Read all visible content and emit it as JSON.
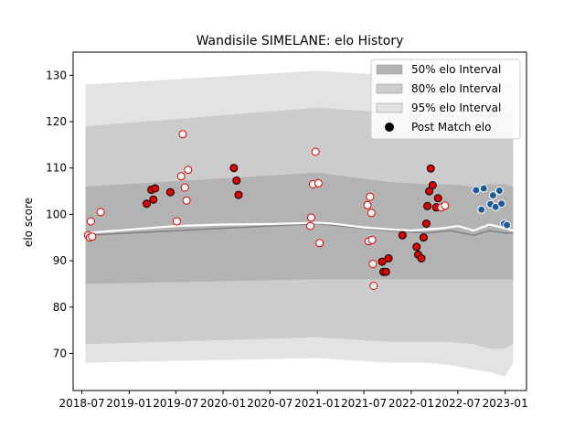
{
  "chart_data": {
    "type": "scatter",
    "title": "Wandisile SIMELANE: elo History",
    "xlabel": "",
    "ylabel": "elo score",
    "xlim": [
      "2018-05-28",
      "2023-03-25"
    ],
    "ylim": [
      62,
      135
    ],
    "xticks": [
      "2018-07-01",
      "2019-01-01",
      "2019-07-01",
      "2020-01-01",
      "2020-07-01",
      "2021-01-01",
      "2021-07-01",
      "2022-01-01",
      "2022-07-01",
      "2023-01-01"
    ],
    "xtick_labels": [
      "2018-07",
      "2019-01",
      "2019-07",
      "2020-01",
      "2020-07",
      "2021-01",
      "2021-07",
      "2022-01",
      "2022-07",
      "2023-01"
    ],
    "yticks": [
      70,
      80,
      90,
      100,
      110,
      120,
      130
    ],
    "grid": false,
    "legend_position": "top-right",
    "legend": [
      {
        "label": "50% elo Interval",
        "kind": "patch",
        "color": "#b3b3b3"
      },
      {
        "label": "80% elo Interval",
        "kind": "patch",
        "color": "#cccccc"
      },
      {
        "label": "95% elo Interval",
        "kind": "patch",
        "color": "#e3e3e3"
      },
      {
        "label": "Post Match elo",
        "kind": "marker",
        "color": "#000000"
      }
    ],
    "bands": {
      "x": [
        "2018-07-15",
        "2021-01-01",
        "2021-10-01",
        "2022-03-01",
        "2022-06-01",
        "2022-09-01",
        "2022-11-01",
        "2023-01-01",
        "2023-02-01"
      ],
      "center": [
        95.5,
        98.0,
        96.5,
        96.0,
        96.5,
        95.5,
        96.5,
        96.0,
        96.0
      ],
      "p50_low": [
        85.0,
        86.0,
        86.0,
        86.0,
        86.0,
        86.0,
        86.0,
        86.0,
        86.0
      ],
      "p50_high": [
        106.0,
        109.0,
        107.0,
        106.5,
        106.5,
        106.0,
        106.5,
        106.5,
        106.0
      ],
      "p80_low": [
        72.0,
        73.5,
        72.5,
        72.5,
        72.5,
        72.0,
        71.0,
        71.0,
        72.0
      ],
      "p80_high": [
        119.0,
        123.0,
        122.0,
        121.5,
        121.5,
        121.0,
        122.0,
        122.0,
        122.0
      ],
      "p95_low": [
        68.0,
        69.0,
        68.0,
        68.0,
        67.5,
        66.5,
        66.0,
        65.0,
        68.0
      ],
      "p95_high": [
        128.0,
        131.0,
        130.0,
        130.0,
        130.0,
        129.5,
        129.0,
        128.5,
        128.5
      ]
    },
    "mean_line": {
      "x": [
        "2018-07-20",
        "2019-07-01",
        "2020-01-01",
        "2020-07-01",
        "2021-01-01",
        "2021-03-01",
        "2021-07-01",
        "2021-10-01",
        "2022-01-01",
        "2022-05-01",
        "2022-07-01",
        "2022-09-01",
        "2022-11-01",
        "2023-01-01",
        "2023-02-01"
      ],
      "y": [
        96.0,
        97.5,
        97.8,
        97.9,
        98.2,
        98.0,
        97.2,
        96.8,
        96.5,
        97.0,
        97.5,
        96.5,
        97.8,
        97.0,
        96.5
      ]
    },
    "series": [
      {
        "name": "Post Match elo",
        "points": [
          {
            "x": "2018-07-25",
            "y": 95.5,
            "style": "open-red"
          },
          {
            "x": "2018-08-01",
            "y": 95.0,
            "style": "open-red"
          },
          {
            "x": "2018-08-10",
            "y": 95.2,
            "style": "open-red"
          },
          {
            "x": "2018-08-05",
            "y": 98.5,
            "style": "open-red"
          },
          {
            "x": "2018-09-12",
            "y": 100.5,
            "style": "open-red"
          },
          {
            "x": "2019-03-10",
            "y": 102.3,
            "style": "filled-red"
          },
          {
            "x": "2019-03-28",
            "y": 105.3,
            "style": "filled-red"
          },
          {
            "x": "2019-04-05",
            "y": 103.2,
            "style": "filled-red"
          },
          {
            "x": "2019-04-12",
            "y": 105.6,
            "style": "filled-red"
          },
          {
            "x": "2019-06-10",
            "y": 104.8,
            "style": "filled-red"
          },
          {
            "x": "2019-07-05",
            "y": 98.5,
            "style": "open-red"
          },
          {
            "x": "2019-07-22",
            "y": 108.2,
            "style": "open-red"
          },
          {
            "x": "2019-07-28",
            "y": 117.3,
            "style": "open-red"
          },
          {
            "x": "2019-08-05",
            "y": 105.8,
            "style": "open-red"
          },
          {
            "x": "2019-08-12",
            "y": 103.0,
            "style": "open-red"
          },
          {
            "x": "2019-08-18",
            "y": 109.6,
            "style": "open-red"
          },
          {
            "x": "2020-02-12",
            "y": 110.0,
            "style": "filled-red"
          },
          {
            "x": "2020-02-22",
            "y": 107.3,
            "style": "filled-red"
          },
          {
            "x": "2020-03-01",
            "y": 104.2,
            "style": "filled-red"
          },
          {
            "x": "2020-12-05",
            "y": 97.5,
            "style": "open-red"
          },
          {
            "x": "2020-12-08",
            "y": 99.3,
            "style": "open-red"
          },
          {
            "x": "2020-12-15",
            "y": 106.5,
            "style": "open-red"
          },
          {
            "x": "2020-12-25",
            "y": 113.5,
            "style": "open-red"
          },
          {
            "x": "2021-01-05",
            "y": 106.7,
            "style": "open-red"
          },
          {
            "x": "2021-01-10",
            "y": 93.8,
            "style": "open-red"
          },
          {
            "x": "2021-07-15",
            "y": 102.0,
            "style": "open-red"
          },
          {
            "x": "2021-07-20",
            "y": 94.2,
            "style": "open-red"
          },
          {
            "x": "2021-07-25",
            "y": 103.8,
            "style": "open-red"
          },
          {
            "x": "2021-07-30",
            "y": 100.3,
            "style": "open-red"
          },
          {
            "x": "2021-08-02",
            "y": 94.5,
            "style": "open-red"
          },
          {
            "x": "2021-08-05",
            "y": 89.3,
            "style": "open-red"
          },
          {
            "x": "2021-08-08",
            "y": 84.6,
            "style": "open-red"
          },
          {
            "x": "2021-09-10",
            "y": 89.8,
            "style": "filled-red"
          },
          {
            "x": "2021-09-15",
            "y": 87.6,
            "style": "filled-red"
          },
          {
            "x": "2021-09-25",
            "y": 87.6,
            "style": "filled-red"
          },
          {
            "x": "2021-10-05",
            "y": 90.5,
            "style": "filled-red"
          },
          {
            "x": "2021-11-28",
            "y": 95.5,
            "style": "filled-red"
          },
          {
            "x": "2022-01-22",
            "y": 93.0,
            "style": "filled-red"
          },
          {
            "x": "2022-01-28",
            "y": 91.3,
            "style": "filled-red"
          },
          {
            "x": "2022-02-10",
            "y": 90.5,
            "style": "filled-red"
          },
          {
            "x": "2022-02-18",
            "y": 95.0,
            "style": "filled-red"
          },
          {
            "x": "2022-03-01",
            "y": 98.0,
            "style": "filled-red"
          },
          {
            "x": "2022-03-05",
            "y": 101.8,
            "style": "filled-red"
          },
          {
            "x": "2022-03-12",
            "y": 105.0,
            "style": "filled-red"
          },
          {
            "x": "2022-03-18",
            "y": 109.9,
            "style": "filled-red"
          },
          {
            "x": "2022-03-25",
            "y": 106.3,
            "style": "filled-red"
          },
          {
            "x": "2022-04-08",
            "y": 101.5,
            "style": "filled-red"
          },
          {
            "x": "2022-04-15",
            "y": 103.5,
            "style": "filled-red"
          },
          {
            "x": "2022-04-28",
            "y": 101.5,
            "style": "open-red"
          },
          {
            "x": "2022-05-12",
            "y": 101.9,
            "style": "open-red"
          },
          {
            "x": "2022-09-10",
            "y": 105.2,
            "style": "blue"
          },
          {
            "x": "2022-10-01",
            "y": 101.0,
            "style": "blue"
          },
          {
            "x": "2022-10-10",
            "y": 105.6,
            "style": "blue"
          },
          {
            "x": "2022-11-05",
            "y": 102.2,
            "style": "blue"
          },
          {
            "x": "2022-11-15",
            "y": 104.1,
            "style": "blue"
          },
          {
            "x": "2022-11-25",
            "y": 101.6,
            "style": "blue"
          },
          {
            "x": "2022-12-10",
            "y": 105.1,
            "style": "blue"
          },
          {
            "x": "2022-12-18",
            "y": 102.3,
            "style": "blue"
          },
          {
            "x": "2022-12-28",
            "y": 98.0,
            "style": "blue"
          },
          {
            "x": "2023-01-08",
            "y": 97.7,
            "style": "blue"
          }
        ]
      }
    ],
    "colors": {
      "filled_red": "#dd0000",
      "open_red_edge": "#dd0000",
      "blue": "#1f5a96",
      "mean_line": "#ffffff",
      "center_line": "#808080"
    }
  }
}
